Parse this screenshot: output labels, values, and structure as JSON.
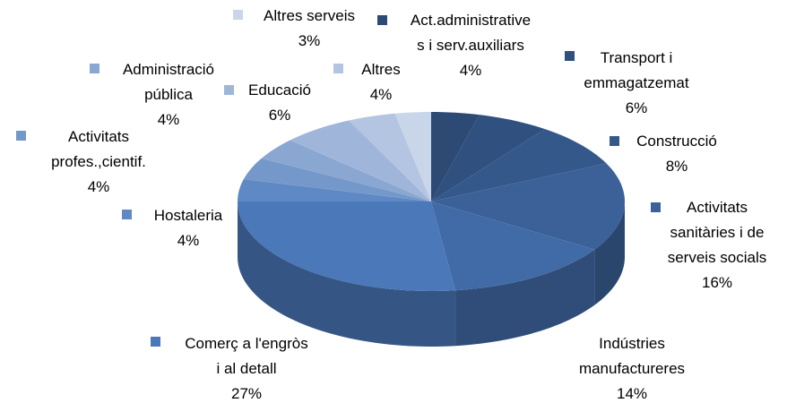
{
  "chart_data": {
    "type": "pie3d",
    "categories": [
      "Act.administrative\ns i serv.auxiliars",
      "Transport i\nemmagatzemat",
      "Construcció",
      "Activitats\nsanitàries i de\nserveis socials",
      "Indústries\nmanufactureres",
      "Comerç a l'engròs\ni al detall",
      "Hostaleria",
      "Activitats\nprofes.,cientif.",
      "Administració\npública",
      "Educació",
      "Altres",
      "Altres serveis"
    ],
    "values": [
      4,
      6,
      8,
      16,
      14,
      27,
      4,
      4,
      4,
      6,
      4,
      3
    ],
    "value_labels": [
      "4%",
      "6%",
      "8%",
      "16%",
      "14%",
      "27%",
      "4%",
      "4%",
      "4%",
      "6%",
      "4%",
      "3%"
    ],
    "colors": [
      "#2c4a74",
      "#30507f",
      "#35588b",
      "#3b6198",
      "#416ba6",
      "#4a78b8",
      "#5f89c4",
      "#7598cb",
      "#8aa7d2",
      "#9fb6da",
      "#b4c5e1",
      "#c9d5e9"
    ]
  }
}
